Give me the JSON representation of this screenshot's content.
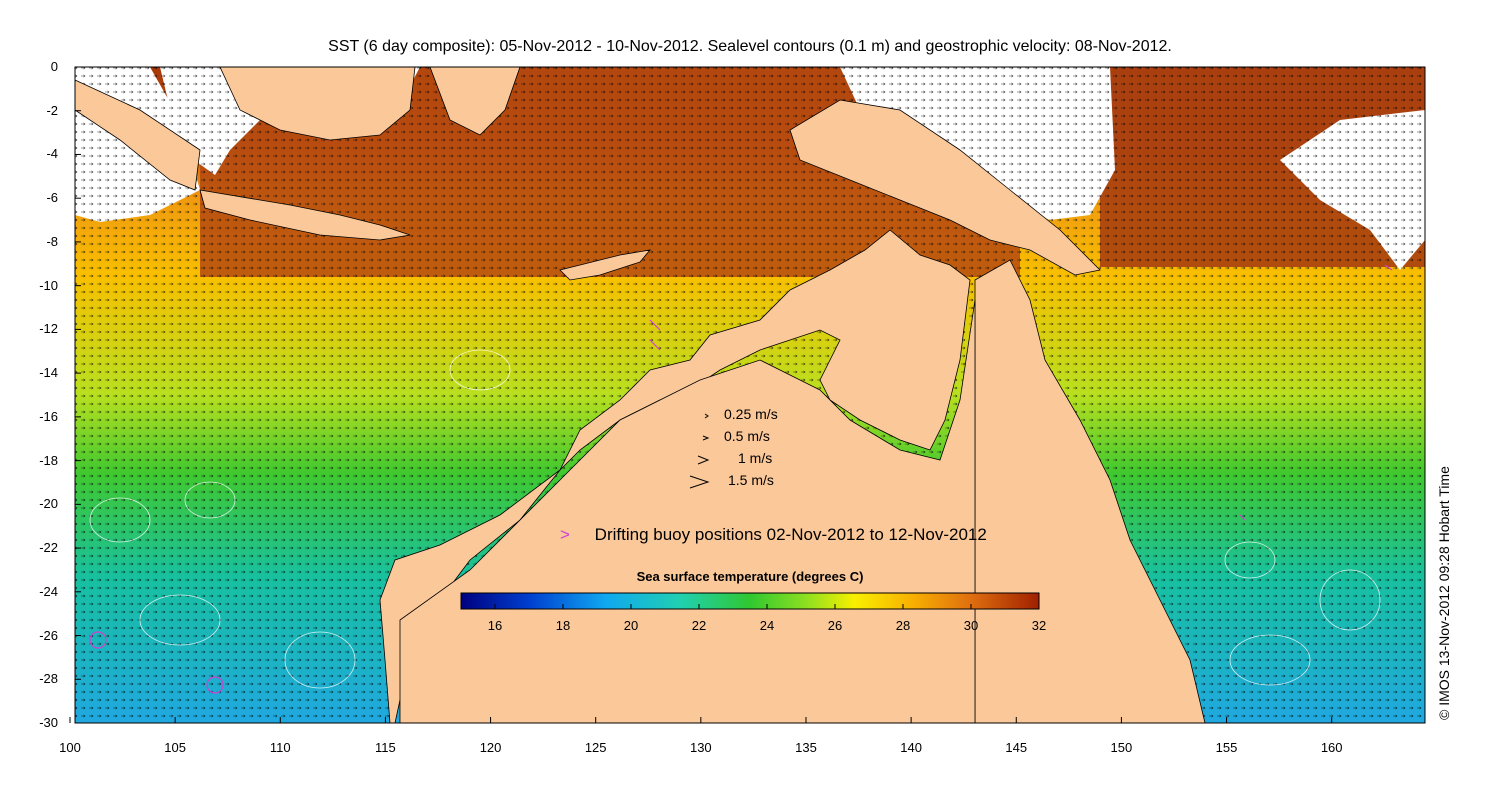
{
  "title": "SST (6 day composite): 05-Nov-2012 - 10-Nov-2012. Sealevel contours (0.1 m) and geostrophic velocity: 08-Nov-2012.",
  "stamp": "© IMOS 13-Nov-2012 09:28 Hobart Time",
  "axes": {
    "x_ticks": [
      "100",
      "105",
      "110",
      "115",
      "120",
      "125",
      "130",
      "135",
      "140",
      "145",
      "150",
      "155",
      "160"
    ],
    "y_ticks": [
      "0",
      "-2",
      "-4",
      "-6",
      "-8",
      "-10",
      "-12",
      "-14",
      "-16",
      "-18",
      "-20",
      "-22",
      "-24",
      "-26",
      "-28",
      "-30"
    ],
    "lon_range": [
      100,
      164.2
    ],
    "lat_range": [
      -30,
      0
    ]
  },
  "velocity_legend": [
    {
      "label": "0.25 m/s",
      "speed": 0.25
    },
    {
      "label": "0.5 m/s",
      "speed": 0.5
    },
    {
      "label": "1 m/s",
      "speed": 1
    },
    {
      "label": "1.5 m/s",
      "speed": 1.5
    }
  ],
  "buoy_legend": {
    "symbol": ">",
    "label": "Drifting buoy positions 02-Nov-2012 to 12-Nov-2012",
    "color": "#d040d0"
  },
  "colorbar": {
    "title": "Sea surface temperature (degrees C)",
    "ticks": [
      "16",
      "18",
      "20",
      "22",
      "24",
      "26",
      "28",
      "30",
      "32"
    ],
    "range": [
      15,
      32
    ]
  },
  "colors": {
    "land": "#fbc89a",
    "cloud": "#ffffff",
    "frame": "#000000"
  }
}
